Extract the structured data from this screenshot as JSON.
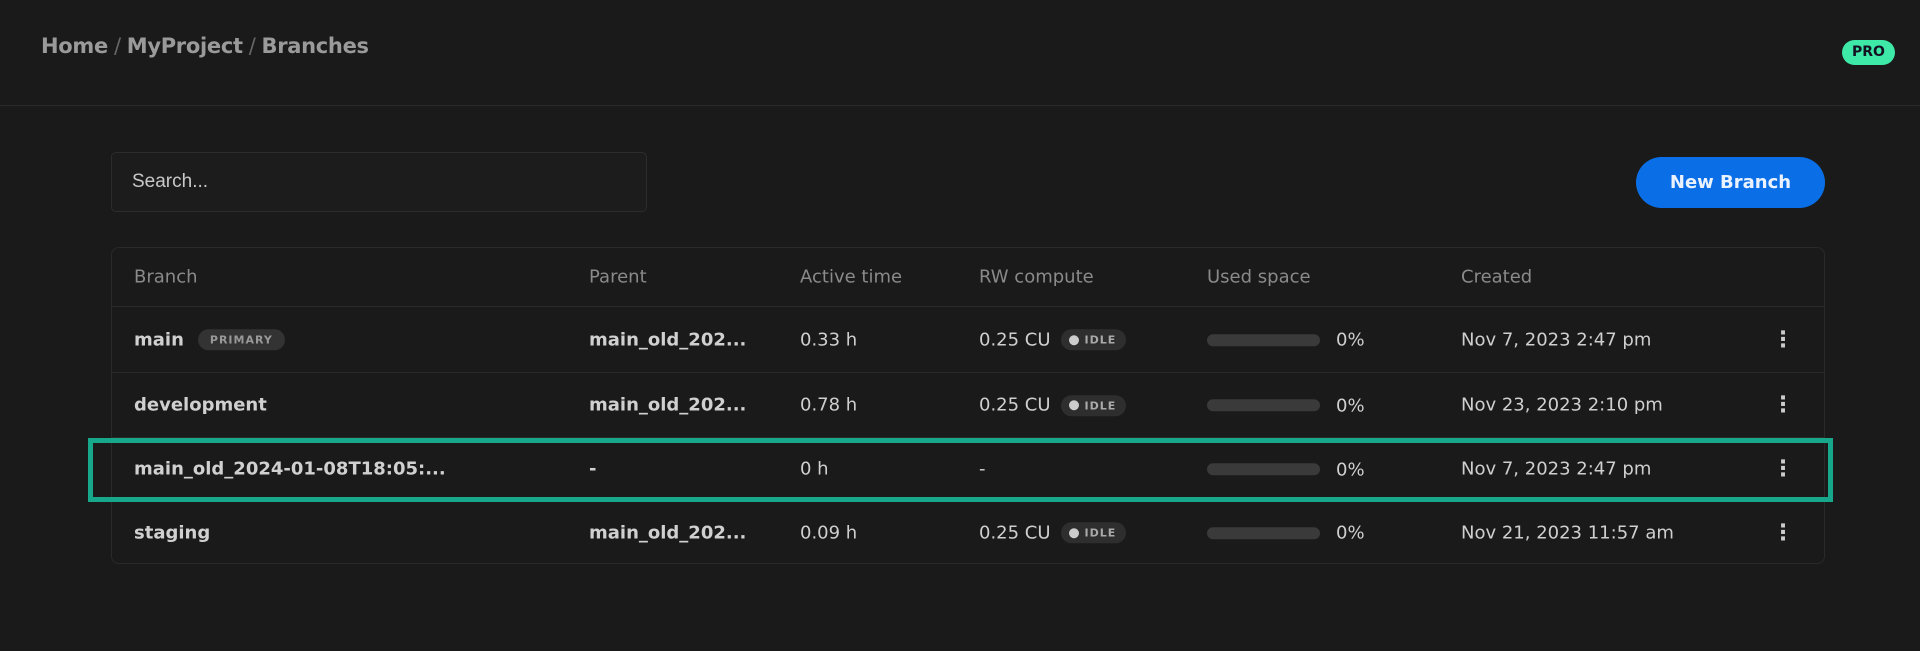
{
  "breadcrumb": [
    "Home",
    "MyProject",
    "Branches"
  ],
  "plan_badge": "PRO",
  "search": {
    "placeholder": "Search...",
    "value": ""
  },
  "new_branch_label": "New Branch",
  "columns": [
    "Branch",
    "Parent",
    "Active time",
    "RW compute",
    "Used space",
    "Created"
  ],
  "rows": [
    {
      "branch": "main",
      "badge": "PRIMARY",
      "parent": "main_old_202...",
      "active": "0.33 h",
      "compute": "0.25 CU",
      "status": "IDLE",
      "used_pct": 0,
      "used": "0%",
      "created": "Nov 7, 2023 2:47 pm"
    },
    {
      "branch": "development",
      "parent": "main_old_202...",
      "active": "0.78 h",
      "compute": "0.25 CU",
      "status": "IDLE",
      "used_pct": 0,
      "used": "0%",
      "created": "Nov 23, 2023 2:10 pm"
    },
    {
      "branch": "main_old_2024-01-08T18:05:...",
      "parent": "-",
      "active": "0 h",
      "compute": "-",
      "used_pct": 0,
      "used": "0%",
      "created": "Nov 7, 2023 2:47 pm",
      "highlighted": true
    },
    {
      "branch": "staging",
      "parent": "main_old_202...",
      "active": "0.09 h",
      "compute": "0.25 CU",
      "status": "IDLE",
      "used_pct": 0,
      "used": "0%",
      "created": "Nov 21, 2023 11:57 am"
    }
  ],
  "colors": {
    "accent": "#0a6fe6",
    "pro": "#3ee8a6",
    "highlight": "#17a88c",
    "background": "#1a1a1a"
  },
  "icons": {
    "row_menu": "more-vertical-icon",
    "status_dot": "status-dot-icon"
  }
}
